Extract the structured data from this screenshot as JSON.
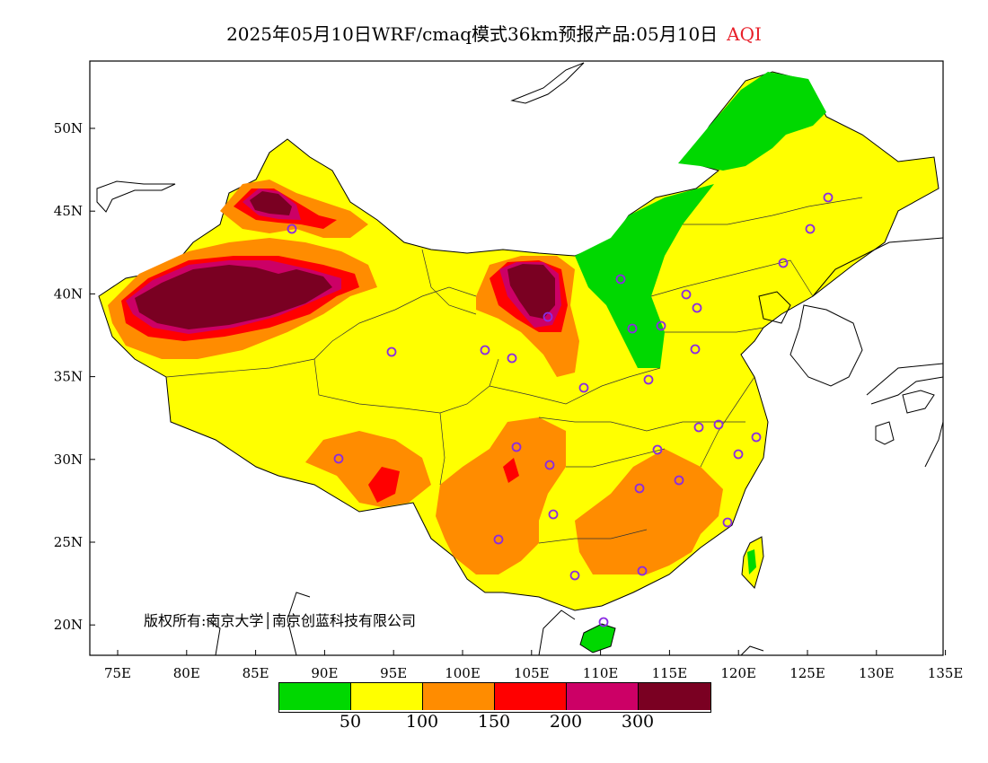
{
  "title": {
    "main": "2025年05月10日WRF/cmaq模式36km预报产品:05月10日",
    "variable": "AQI",
    "variable_color": "#e8202a"
  },
  "axes": {
    "lon_ticks": [
      "75E",
      "80E",
      "85E",
      "90E",
      "95E",
      "100E",
      "105E",
      "110E",
      "115E",
      "120E",
      "125E",
      "130E",
      "135E"
    ],
    "lat_ticks": [
      "50N",
      "45N",
      "40N",
      "35N",
      "30N",
      "25N",
      "20N"
    ]
  },
  "credit": "版权所有:南京大学│南京创蓝科技有限公司",
  "legend": {
    "colors": [
      "#00d800",
      "#ffff00",
      "#ff8c00",
      "#ff0000",
      "#cc0066",
      "#7a0022"
    ],
    "labels": [
      "50",
      "100",
      "150",
      "200",
      "300"
    ]
  },
  "colors": {
    "good": "#00d800",
    "moderate": "#ffff00",
    "light": "#ff8c00",
    "medium": "#ff0000",
    "heavy": "#cc0066",
    "severe": "#7a0022",
    "city_marker": "#8a2be2"
  }
}
